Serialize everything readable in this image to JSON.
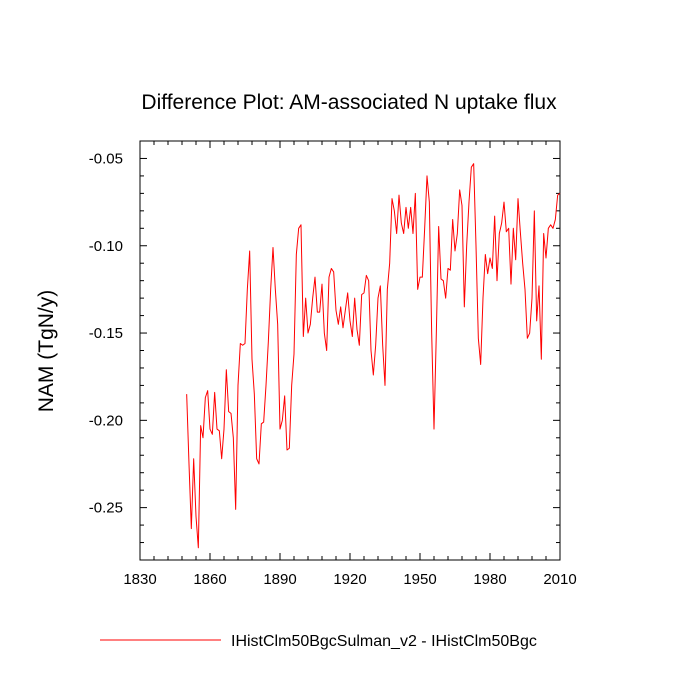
{
  "chart_data": {
    "type": "line",
    "title": "Difference Plot: AM-associated N uptake flux",
    "xlabel": "",
    "ylabel": "NAM  (TgN/y)",
    "xlim": [
      1830,
      2010
    ],
    "ylim": [
      -0.28,
      -0.04
    ],
    "x_ticks": [
      1830,
      1860,
      1890,
      1920,
      1950,
      1980,
      2010
    ],
    "x_tick_labels": [
      "1830",
      "1860",
      "1890",
      "1920",
      "1950",
      "1980",
      "2010"
    ],
    "y_ticks": [
      -0.25,
      -0.2,
      -0.15,
      -0.1,
      -0.05
    ],
    "y_tick_labels": [
      "-0.25",
      "-0.20",
      "-0.15",
      "-0.10",
      "-0.05"
    ],
    "grid": false,
    "legend_position": "bottom",
    "series": [
      {
        "name": "IHistClm50BgcSulman_v2 - IHistClm50Bgc",
        "color": "#ff0000",
        "x": [
          1850,
          1851,
          1852,
          1853,
          1854,
          1855,
          1856,
          1857,
          1858,
          1859,
          1860,
          1861,
          1862,
          1863,
          1864,
          1865,
          1866,
          1867,
          1868,
          1869,
          1870,
          1871,
          1872,
          1873,
          1874,
          1875,
          1876,
          1877,
          1878,
          1879,
          1880,
          1881,
          1882,
          1883,
          1884,
          1885,
          1886,
          1887,
          1888,
          1889,
          1890,
          1891,
          1892,
          1893,
          1894,
          1895,
          1896,
          1897,
          1898,
          1899,
          1900,
          1901,
          1902,
          1903,
          1904,
          1905,
          1906,
          1907,
          1908,
          1909,
          1910,
          1911,
          1912,
          1913,
          1914,
          1915,
          1916,
          1917,
          1918,
          1919,
          1920,
          1921,
          1922,
          1923,
          1924,
          1925,
          1926,
          1927,
          1928,
          1929,
          1930,
          1931,
          1932,
          1933,
          1934,
          1935,
          1936,
          1937,
          1938,
          1939,
          1940,
          1941,
          1942,
          1943,
          1944,
          1945,
          1946,
          1947,
          1948,
          1949,
          1950,
          1951,
          1952,
          1953,
          1954,
          1955,
          1956,
          1957,
          1958,
          1959,
          1960,
          1961,
          1962,
          1963,
          1964,
          1965,
          1966,
          1967,
          1968,
          1969,
          1970,
          1971,
          1972,
          1973,
          1974,
          1975,
          1976,
          1977,
          1978,
          1979,
          1980,
          1981,
          1982,
          1983,
          1984,
          1985,
          1986,
          1987,
          1988,
          1989,
          1990,
          1991,
          1992,
          1993,
          1994,
          1995,
          1996,
          1997,
          1998,
          1999,
          2000,
          2001,
          2002,
          2003,
          2004,
          2005,
          2006,
          2007,
          2008,
          2009,
          2010
        ],
        "values": [
          -0.185,
          -0.225,
          -0.262,
          -0.222,
          -0.255,
          -0.273,
          -0.203,
          -0.21,
          -0.187,
          -0.183,
          -0.205,
          -0.208,
          -0.184,
          -0.205,
          -0.206,
          -0.222,
          -0.205,
          -0.171,
          -0.195,
          -0.196,
          -0.21,
          -0.251,
          -0.18,
          -0.156,
          -0.157,
          -0.156,
          -0.125,
          -0.103,
          -0.165,
          -0.185,
          -0.222,
          -0.225,
          -0.202,
          -0.201,
          -0.18,
          -0.155,
          -0.125,
          -0.101,
          -0.125,
          -0.145,
          -0.205,
          -0.2,
          -0.186,
          -0.217,
          -0.216,
          -0.18,
          -0.162,
          -0.105,
          -0.09,
          -0.088,
          -0.152,
          -0.13,
          -0.15,
          -0.145,
          -0.13,
          -0.118,
          -0.138,
          -0.138,
          -0.122,
          -0.15,
          -0.16,
          -0.118,
          -0.113,
          -0.115,
          -0.137,
          -0.145,
          -0.135,
          -0.147,
          -0.137,
          -0.127,
          -0.143,
          -0.152,
          -0.13,
          -0.148,
          -0.157,
          -0.128,
          -0.127,
          -0.117,
          -0.12,
          -0.16,
          -0.174,
          -0.157,
          -0.13,
          -0.123,
          -0.157,
          -0.18,
          -0.125,
          -0.11,
          -0.073,
          -0.08,
          -0.093,
          -0.071,
          -0.087,
          -0.093,
          -0.078,
          -0.09,
          -0.078,
          -0.093,
          -0.07,
          -0.125,
          -0.118,
          -0.118,
          -0.09,
          -0.06,
          -0.075,
          -0.15,
          -0.205,
          -0.15,
          -0.089,
          -0.119,
          -0.12,
          -0.13,
          -0.113,
          -0.114,
          -0.085,
          -0.103,
          -0.093,
          -0.068,
          -0.077,
          -0.135,
          -0.1,
          -0.075,
          -0.055,
          -0.053,
          -0.1,
          -0.153,
          -0.168,
          -0.13,
          -0.105,
          -0.116,
          -0.107,
          -0.113,
          -0.083,
          -0.12,
          -0.093,
          -0.087,
          -0.075,
          -0.092,
          -0.09,
          -0.122,
          -0.09,
          -0.108,
          -0.073,
          -0.092,
          -0.11,
          -0.125,
          -0.153,
          -0.15,
          -0.13,
          -0.08,
          -0.143,
          -0.123,
          -0.165,
          -0.093,
          -0.107,
          -0.09,
          -0.088,
          -0.09,
          -0.085,
          -0.071,
          -0.07
        ]
      }
    ]
  }
}
